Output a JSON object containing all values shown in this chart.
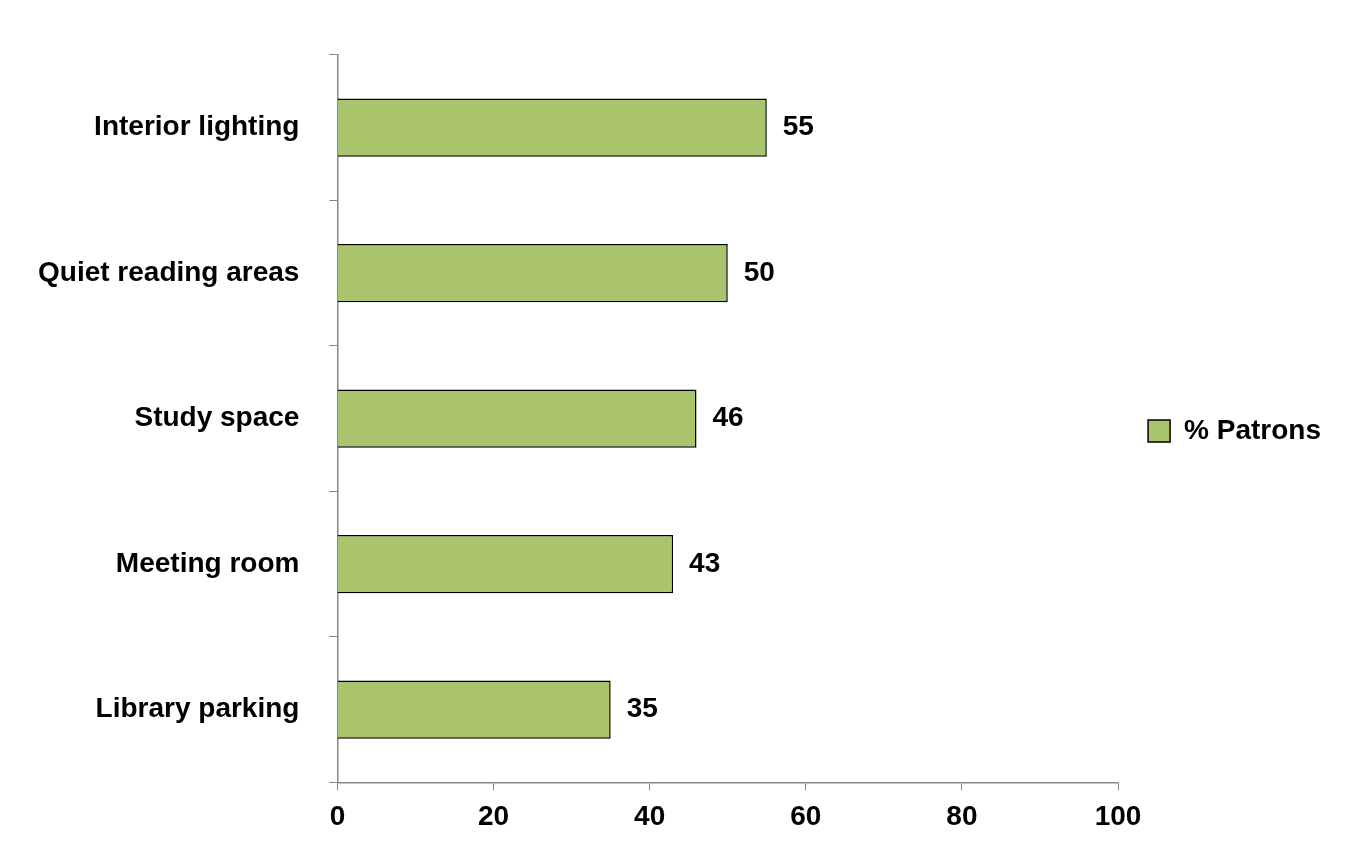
{
  "chart_data": {
    "type": "bar",
    "orientation": "horizontal",
    "categories": [
      "Interior lighting",
      "Quiet reading areas",
      "Study space",
      "Meeting room",
      "Library parking"
    ],
    "series": [
      {
        "name": "% Patrons",
        "color": "#a9c46c",
        "values": [
          55,
          50,
          46,
          43,
          35
        ]
      }
    ],
    "xlim": [
      0,
      100
    ],
    "xticks": [
      0,
      20,
      40,
      60,
      80,
      100
    ],
    "data_labels": true,
    "legend": "right",
    "grid": false
  }
}
